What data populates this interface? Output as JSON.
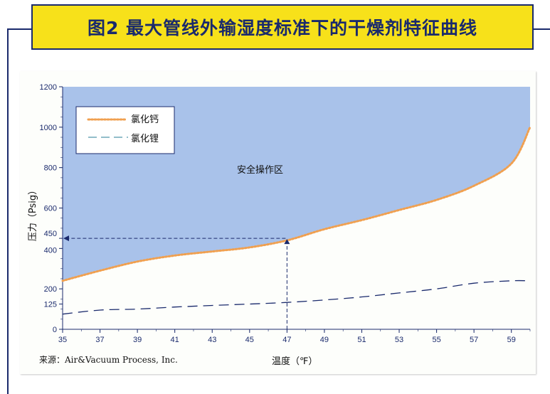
{
  "title": "图2 最大管线外输湿度标准下的干燥剂特征曲线",
  "source": "来源：Air&Vacuum Process, Inc.",
  "chart_data": {
    "type": "line",
    "xlabel": "温度（℉）",
    "ylabel": "压力（Psig）",
    "xlim": [
      35,
      60
    ],
    "ylim": [
      0,
      1200
    ],
    "x_ticks": [
      35,
      37,
      39,
      41,
      43,
      45,
      47,
      49,
      51,
      53,
      55,
      57,
      59
    ],
    "y_ticks": [
      0,
      125,
      200,
      400,
      450,
      600,
      800,
      1000,
      1200
    ],
    "legend_position": "top-left",
    "region_label": "安全操作区",
    "series": [
      {
        "name": "氯化钙",
        "color": "#f0a050",
        "style": "dotted",
        "x": [
          35,
          37,
          39,
          41,
          43,
          45,
          47,
          49,
          51,
          53,
          55,
          57,
          59,
          60
        ],
        "y": [
          240,
          290,
          335,
          365,
          385,
          405,
          440,
          495,
          540,
          590,
          640,
          710,
          820,
          1000
        ]
      },
      {
        "name": "氯化锂",
        "color": "#1a2a6c",
        "style": "dashed",
        "x": [
          35,
          37,
          39,
          41,
          43,
          45,
          47,
          49,
          51,
          53,
          55,
          57,
          59,
          59.9
        ],
        "y": [
          75,
          95,
          100,
          110,
          118,
          125,
          133,
          145,
          160,
          180,
          200,
          228,
          240,
          240
        ]
      }
    ],
    "annotation": {
      "x": 47,
      "y": 450,
      "label": "450"
    }
  }
}
